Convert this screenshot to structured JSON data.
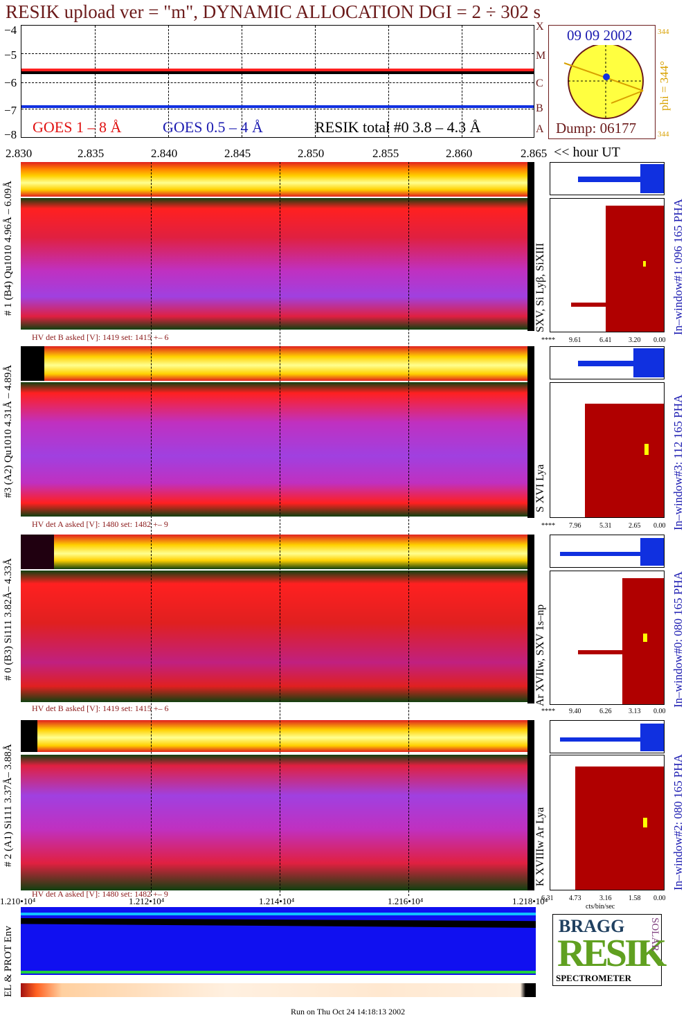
{
  "title": "RESIK upload ver = \"m\", DYNAMIC ALLOCATION  DGI =   2 ÷ 302 s",
  "goes": {
    "yticks": [
      "−4",
      "−5",
      "−6",
      "−7",
      "−8"
    ],
    "legend_goes_long": "GOES 1 – 8 Å",
    "legend_goes_short": "GOES 0.5 – 4 Å",
    "legend_resik": "RESIK total #0  3.8 – 4.3 Å",
    "class_letters": [
      "X",
      "M",
      "C",
      "B",
      "A"
    ],
    "colors": {
      "goes_long": "#ff2020",
      "goes_short": "#1030e0",
      "resik": "#000000"
    }
  },
  "sun": {
    "date": "09 09 2002",
    "phi_label": "phi = 344°",
    "phi_small_top": "344",
    "phi_small_bottom": "344",
    "dump": "Dump: 06177",
    "disk_color": "#ffff40"
  },
  "time_axis": {
    "ticks": [
      "2.830",
      "2.835",
      "2.840",
      "2.845",
      "2.850",
      "2.855",
      "2.860",
      "2.865"
    ],
    "unit": "<< hour UT"
  },
  "detectors": [
    {
      "left_label": "# 1 (B4) Qu1010 4.96Å – 6.09Å",
      "line_label": "SXV, Si Lyβ, SiXIII",
      "hv_text": "HV det B asked [V]:  1419 set:  1415 +–    6",
      "window_label": "In–window#1:  096 165 PHA",
      "pha_ticks": [
        "****",
        "9.61",
        "6.41",
        "3.20",
        "0.00"
      ]
    },
    {
      "left_label": "#3 (A2) Qu1010  4.31Å – 4.89Å",
      "line_label": "S XVI Lya",
      "hv_text": "HV det A asked [V]:  1480 set:  1482 +–    9",
      "window_label": "In–window#3:  112 165 PHA",
      "pha_ticks": [
        "****",
        "7.96",
        "5.31",
        "2.65",
        "0.00"
      ]
    },
    {
      "left_label": "# 0 (B3) Si111  3.82Å– 4.33Å",
      "line_label": "Ar XVIIw,  SXV 1s–np",
      "hv_text": "HV det B asked [V]:  1419 set:  1415 +–    6",
      "window_label": "In–window#0:  080 165 PHA",
      "pha_ticks": [
        "****",
        "9.40",
        "6.26",
        "3.13",
        "0.00"
      ]
    },
    {
      "left_label": "# 2 (A1) Si111  3.37Å– 3.88Å",
      "line_label": "K XVIIIw  Ar Lya",
      "hv_text": "HV det A asked [V]:  1480 set:  1482 +–    9",
      "window_label": "In–window#2:  080 165 PHA",
      "pha_ticks": [
        "6.31",
        "4.73",
        "3.16",
        "1.58",
        "0.00"
      ],
      "pha_unit": "cts/bin/sec"
    }
  ],
  "bottom_axis": {
    "ticks": [
      "1.210•10⁴",
      "1.212•10⁴",
      "1.214•10⁴",
      "1.216•10⁴",
      "1.218•10⁴"
    ]
  },
  "env": {
    "label": "EL & PROT Env"
  },
  "logo": {
    "letters": "RESIK",
    "bragg": "BRAGG",
    "solar": "SOLAR",
    "spectrometer": "SPECTROMETER"
  },
  "footer": "Run on Thu Oct 24 14:18:13 2002"
}
